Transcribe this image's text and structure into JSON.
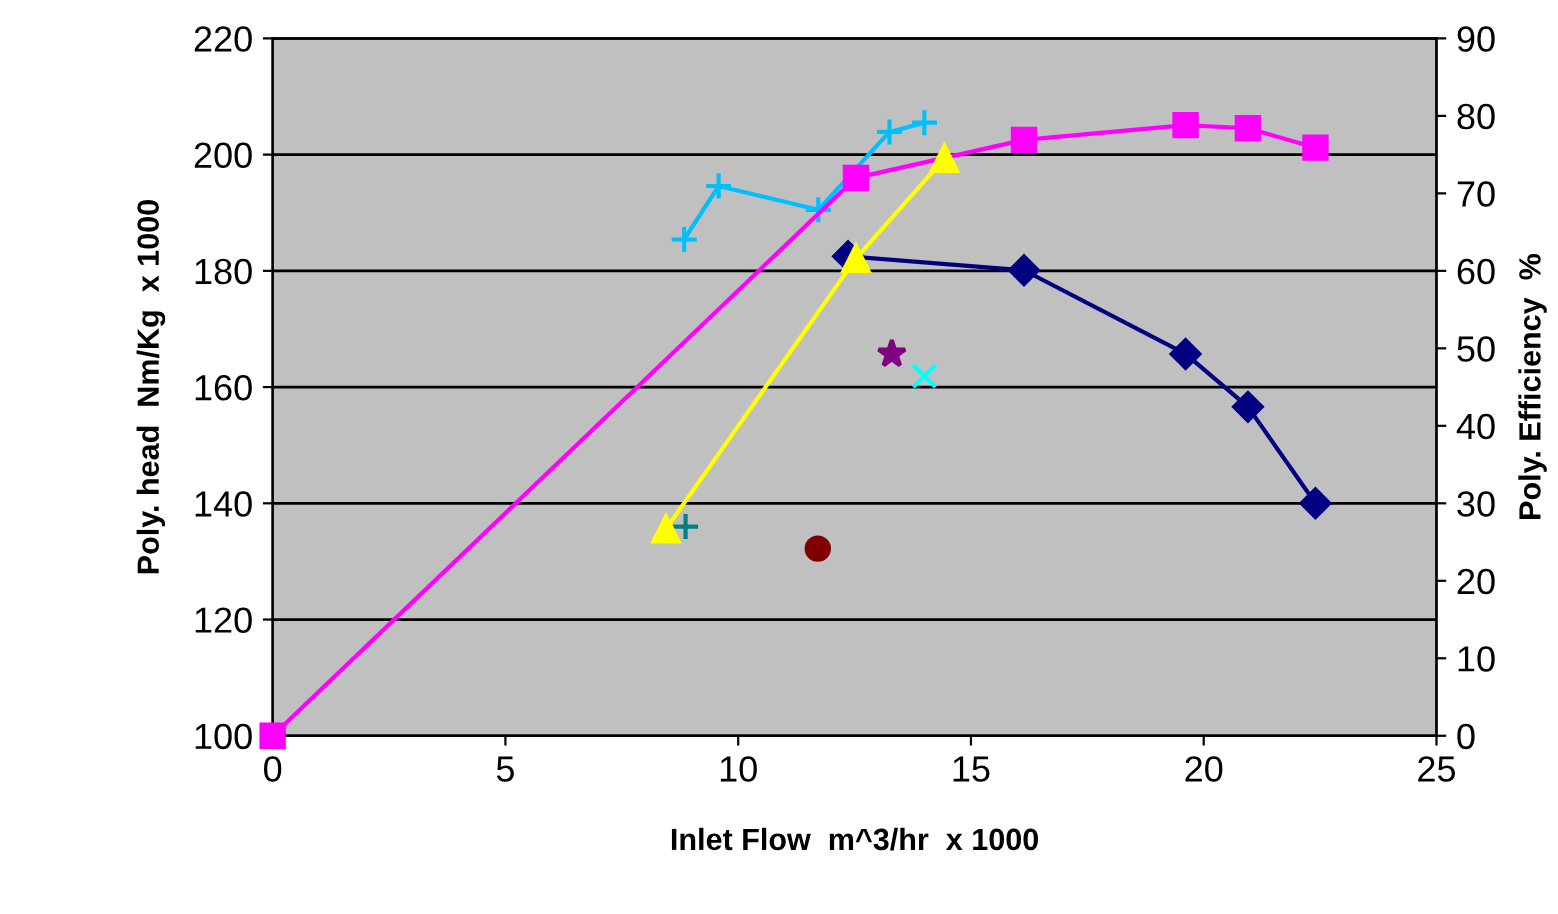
{
  "chart_data": {
    "type": "line",
    "xlabel": "Inlet Flow  m^3/hr  x 1000",
    "ylabel": "Poly. head  Nm/Kg  x 1000",
    "y2label": "Poly. Efficiency  %",
    "xlim": [
      0,
      25
    ],
    "xticks": [
      0,
      5,
      10,
      15,
      20,
      25
    ],
    "ylim": [
      100,
      220
    ],
    "yticks": [
      100,
      120,
      140,
      160,
      180,
      200,
      220
    ],
    "y2lim": [
      0,
      90
    ],
    "y2ticks": [
      0,
      10,
      20,
      30,
      40,
      50,
      60,
      70,
      80,
      90
    ],
    "grid": "y",
    "legend": false,
    "series": [
      {
        "axis": "y2",
        "color": "#ff00ff",
        "marker": "square",
        "x": [
          0,
          12.53,
          16.14,
          19.61,
          20.95,
          22.4
        ],
        "values": [
          0,
          72,
          76.9,
          78.8,
          78.4,
          75.9
        ]
      },
      {
        "axis": "y2",
        "color": "#ffff00",
        "marker": "triangle",
        "x": [
          8.45,
          12.53,
          14.43
        ],
        "values": [
          26.7,
          61.6,
          74.5
        ]
      },
      {
        "color": "#000080",
        "marker": "diamond",
        "x": [
          12.36,
          16.14,
          19.61,
          20.95,
          22.4
        ],
        "values": [
          182.5,
          180.1,
          165.7,
          156.6,
          140.0
        ]
      },
      {
        "color": "#00bfff",
        "marker": "cross",
        "x": [
          8.84,
          9.58,
          11.72,
          13.25,
          14.0
        ],
        "values": [
          185.4,
          194.6,
          190.5,
          203.9,
          205.5
        ]
      },
      {
        "type": "scatter",
        "color": "#008080",
        "marker": "cross",
        "x": [
          8.87
        ],
        "values": [
          136.0
        ]
      },
      {
        "type": "scatter",
        "color": "#800000",
        "marker": "circle",
        "x": [
          11.71
        ],
        "values": [
          132.2
        ]
      },
      {
        "type": "scatter",
        "color": "#800080",
        "marker": "star",
        "x": [
          13.3
        ],
        "values": [
          165.7
        ]
      },
      {
        "type": "scatter",
        "color": "#00ffff",
        "marker": "x",
        "x": [
          14.0
        ],
        "values": [
          161.9
        ]
      }
    ]
  }
}
